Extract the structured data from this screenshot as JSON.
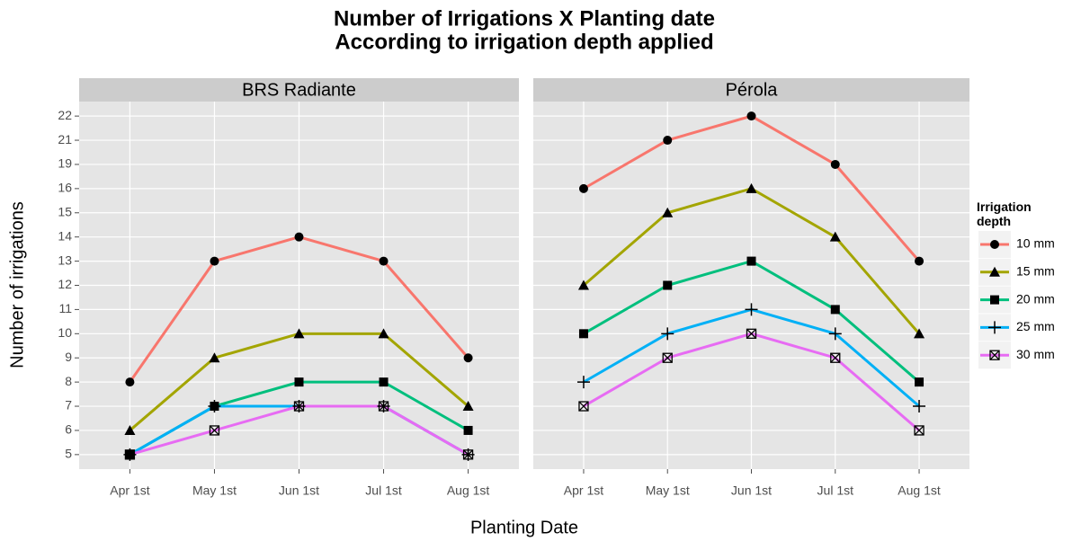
{
  "chart_data": {
    "type": "line",
    "title": "Number of Irrigations X Planting date",
    "subtitle": "According to irrigation depth applied",
    "x_label": "Planting Date",
    "y_label": "Number of irrigations",
    "legend_title": "Irrigation depth",
    "legend_position": "right",
    "grid": true,
    "y_discrete": true,
    "categories": [
      "Apr 1st",
      "May 1st",
      "Jun 1st",
      "Jul 1st",
      "Aug 1st"
    ],
    "yticks": [
      5,
      6,
      7,
      8,
      9,
      10,
      11,
      12,
      13,
      14,
      15,
      16,
      19,
      21,
      22
    ],
    "series": [
      {
        "name": "10 mm",
        "color": "#F8766D",
        "marker": "circle"
      },
      {
        "name": "15 mm",
        "color": "#A3A500",
        "marker": "triangle"
      },
      {
        "name": "20 mm",
        "color": "#00BF7D",
        "marker": "square"
      },
      {
        "name": "25 mm",
        "color": "#00B0F6",
        "marker": "plus"
      },
      {
        "name": "30 mm",
        "color": "#E76BF3",
        "marker": "boxcross"
      }
    ],
    "panels": [
      {
        "title": "BRS Radiante",
        "values": [
          [
            8,
            13,
            14,
            13,
            9
          ],
          [
            6,
            9,
            10,
            10,
            7
          ],
          [
            5,
            7,
            8,
            8,
            6
          ],
          [
            5,
            7,
            7,
            7,
            5
          ],
          [
            5,
            6,
            7,
            7,
            5
          ]
        ]
      },
      {
        "title": "Pérola",
        "values": [
          [
            16,
            21,
            22,
            19,
            13
          ],
          [
            12,
            15,
            16,
            14,
            10
          ],
          [
            10,
            12,
            13,
            11,
            8
          ],
          [
            8,
            10,
            11,
            10,
            7
          ],
          [
            7,
            9,
            10,
            9,
            6
          ]
        ]
      }
    ]
  }
}
